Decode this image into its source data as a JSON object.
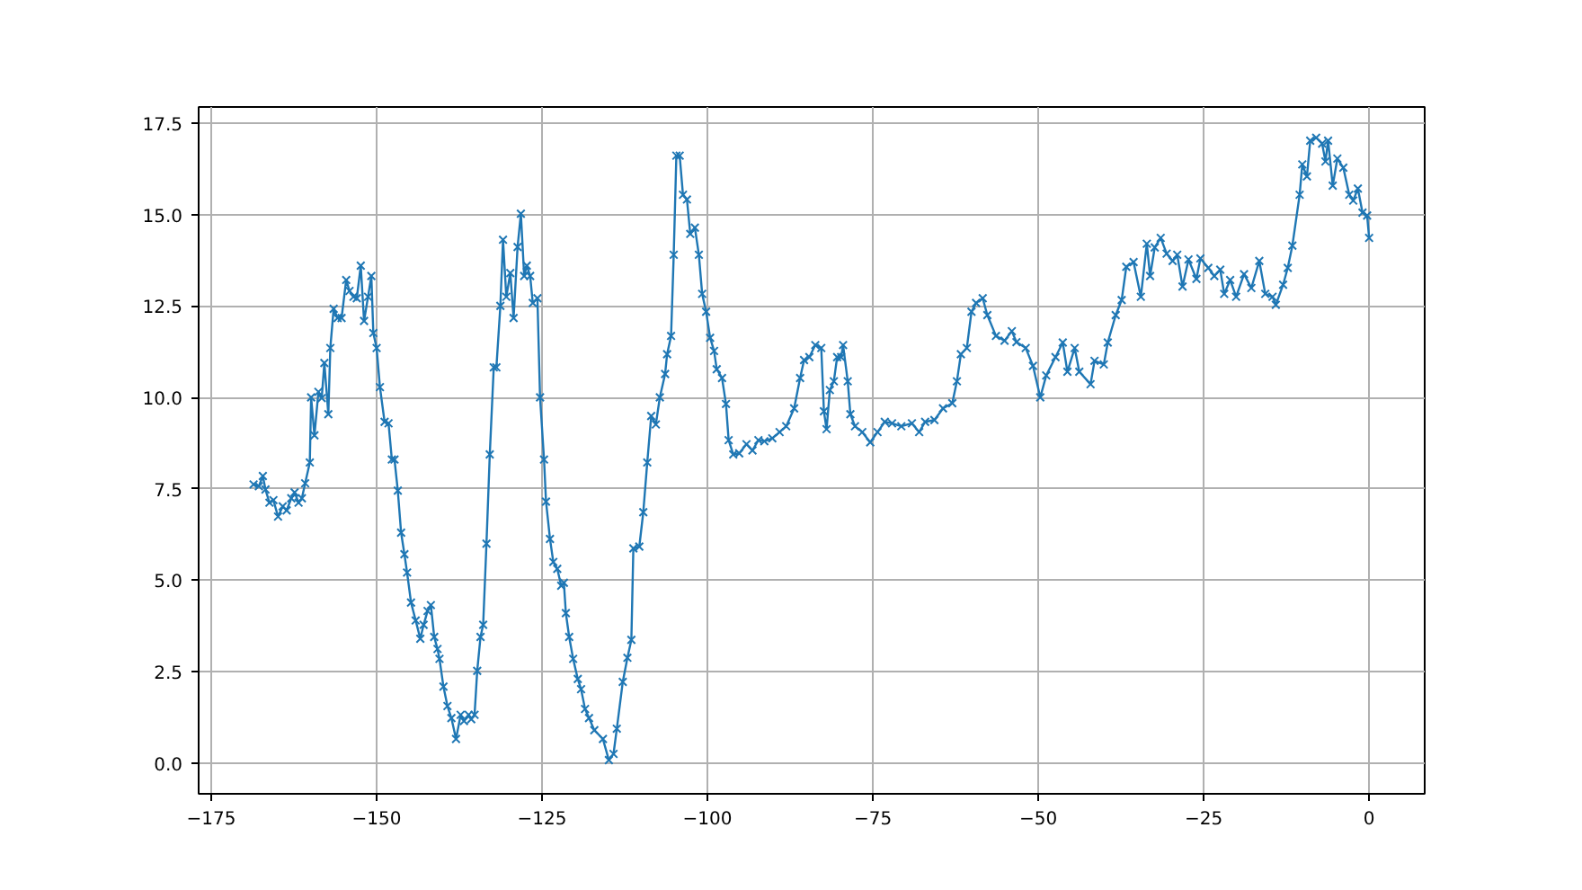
{
  "chart_data": {
    "type": "line",
    "marker": "cross",
    "grid": true,
    "xlim": [
      -176.9,
      8.4
    ],
    "ylim": [
      -0.84,
      17.94
    ],
    "xticks": [
      {
        "value": -175,
        "label": "−175"
      },
      {
        "value": -150,
        "label": "−150"
      },
      {
        "value": -125,
        "label": "−125"
      },
      {
        "value": -100,
        "label": "−100"
      },
      {
        "value": -75,
        "label": "−75"
      },
      {
        "value": -50,
        "label": "−50"
      },
      {
        "value": -25,
        "label": "−25"
      },
      {
        "value": 0,
        "label": "0"
      }
    ],
    "yticks": [
      {
        "value": 0,
        "label": "0.0"
      },
      {
        "value": 2.5,
        "label": "2.5"
      },
      {
        "value": 5,
        "label": "5.0"
      },
      {
        "value": 7.5,
        "label": "7.5"
      },
      {
        "value": 10,
        "label": "10.0"
      },
      {
        "value": 12.5,
        "label": "12.5"
      },
      {
        "value": 15,
        "label": "15.0"
      },
      {
        "value": 17.5,
        "label": "17.5"
      }
    ],
    "series": [
      {
        "color": "#1f77b4",
        "x": [
          -168.6,
          -167.8,
          -167.2,
          -166.8,
          -166.2,
          -165.6,
          -164.9,
          -164.2,
          -163.6,
          -162.9,
          -162.4,
          -161.8,
          -161.3,
          -160.8,
          -160.1,
          -159.9,
          -159.4,
          -158.8,
          -158.3,
          -157.9,
          -157.3,
          -157.0,
          -156.5,
          -155.9,
          -155.3,
          -154.6,
          -154.1,
          -153.5,
          -153.0,
          -152.4,
          -151.9,
          -151.3,
          -150.8,
          -150.5,
          -150.0,
          -149.5,
          -148.8,
          -148.2,
          -147.7,
          -147.3,
          -146.8,
          -146.3,
          -145.8,
          -145.4,
          -144.8,
          -144.1,
          -143.4,
          -142.9,
          -142.3,
          -141.8,
          -141.3,
          -140.8,
          -140.5,
          -139.9,
          -139.3,
          -138.7,
          -138.0,
          -137.3,
          -136.8,
          -136.1,
          -135.7,
          -135.2,
          -134.8,
          -134.3,
          -133.9,
          -133.4,
          -132.9,
          -132.3,
          -131.9,
          -131.3,
          -130.9,
          -130.4,
          -129.8,
          -129.3,
          -128.7,
          -128.2,
          -127.7,
          -127.3,
          -126.8,
          -126.4,
          -125.7,
          -125.3,
          -124.7,
          -124.4,
          -123.8,
          -123.3,
          -122.7,
          -122.1,
          -121.7,
          -121.4,
          -120.9,
          -120.3,
          -119.6,
          -119.1,
          -118.5,
          -117.9,
          -117.1,
          -115.8,
          -114.9,
          -114.2,
          -113.7,
          -112.8,
          -112.1,
          -111.5,
          -111.2,
          -110.3,
          -109.7,
          -109.1,
          -108.5,
          -107.8,
          -107.2,
          -106.4,
          -106.1,
          -105.5,
          -105.1,
          -104.7,
          -104.2,
          -103.7,
          -103.1,
          -102.6,
          -101.9,
          -101.3,
          -100.8,
          -100.2,
          -99.6,
          -99.0,
          -98.6,
          -97.8,
          -97.2,
          -96.8,
          -96.1,
          -95.2,
          -94.1,
          -93.2,
          -92.3,
          -91.4,
          -90.2,
          -89.1,
          -88.1,
          -86.9,
          -86.0,
          -85.4,
          -84.6,
          -83.7,
          -82.8,
          -82.4,
          -82.0,
          -81.5,
          -80.9,
          -80.4,
          -79.8,
          -79.5,
          -78.8,
          -78.4,
          -77.7,
          -76.6,
          -75.4,
          -74.3,
          -73.2,
          -72.1,
          -70.7,
          -69.1,
          -68.0,
          -67.1,
          -65.7,
          -64.4,
          -63.0,
          -62.3,
          -61.7,
          -60.8,
          -60.1,
          -59.4,
          -58.4,
          -57.7,
          -56.4,
          -55.1,
          -54.0,
          -53.3,
          -51.9,
          -50.8,
          -49.7,
          -48.8,
          -47.4,
          -46.3,
          -45.6,
          -44.5,
          -43.8,
          -42.1,
          -41.5,
          -40.1,
          -39.5,
          -38.3,
          -37.4,
          -36.7,
          -35.6,
          -34.5,
          -33.6,
          -33.1,
          -32.4,
          -31.5,
          -30.6,
          -29.7,
          -29.0,
          -28.2,
          -27.3,
          -26.1,
          -25.5,
          -24.3,
          -23.4,
          -22.5,
          -21.9,
          -21.0,
          -20.1,
          -18.9,
          -17.8,
          -16.6,
          -15.7,
          -14.6,
          -14.1,
          -13.0,
          -12.3,
          -11.6,
          -10.5,
          -10.1,
          -9.4,
          -8.9,
          -8.0,
          -7.1,
          -6.6,
          -6.2,
          -5.5,
          -4.8,
          -3.9,
          -3.0,
          -2.4,
          -1.7,
          -1.0,
          -0.3,
          0
        ],
        "values": [
          7.62,
          7.57,
          7.85,
          7.48,
          7.12,
          7.19,
          6.74,
          7.02,
          6.91,
          7.24,
          7.4,
          7.12,
          7.24,
          7.65,
          8.22,
          10.0,
          8.96,
          10.15,
          9.98,
          10.94,
          9.54,
          11.35,
          12.42,
          12.17,
          12.17,
          13.21,
          12.91,
          12.75,
          12.71,
          13.6,
          12.09,
          12.75,
          13.32,
          11.76,
          11.35,
          10.28,
          9.33,
          9.29,
          8.3,
          8.3,
          7.45,
          6.3,
          5.71,
          5.21,
          4.39,
          3.9,
          3.4,
          3.78,
          4.16,
          4.32,
          3.45,
          3.12,
          2.85,
          2.09,
          1.56,
          1.23,
          0.66,
          1.32,
          1.15,
          1.32,
          1.2,
          1.32,
          2.52,
          3.45,
          3.78,
          6.0,
          8.44,
          10.82,
          10.82,
          12.5,
          14.31,
          12.75,
          13.4,
          12.17,
          14.11,
          15.02,
          13.32,
          13.6,
          13.32,
          12.58,
          12.71,
          10.0,
          8.3,
          7.15,
          6.13,
          5.5,
          5.31,
          4.85,
          4.93,
          4.1,
          3.45,
          2.85,
          2.3,
          2.02,
          1.48,
          1.23,
          0.9,
          0.66,
          0.08,
          0.25,
          0.94,
          2.22,
          2.88,
          3.37,
          5.87,
          5.92,
          6.86,
          8.22,
          9.49,
          9.26,
          10.0,
          10.64,
          11.18,
          11.68,
          13.9,
          16.61,
          16.61,
          15.54,
          15.41,
          14.47,
          14.64,
          13.9,
          12.83,
          12.34,
          11.63,
          11.27,
          10.77,
          10.53,
          9.82,
          8.83,
          8.44,
          8.47,
          8.72,
          8.55,
          8.83,
          8.8,
          8.88,
          9.05,
          9.21,
          9.7,
          10.53,
          11.02,
          11.1,
          11.43,
          11.35,
          9.62,
          9.13,
          10.2,
          10.44,
          11.1,
          11.1,
          11.43,
          10.44,
          9.54,
          9.21,
          9.05,
          8.77,
          9.05,
          9.33,
          9.29,
          9.21,
          9.29,
          9.05,
          9.33,
          9.38,
          9.7,
          9.84,
          10.44,
          11.18,
          11.35,
          12.34,
          12.58,
          12.71,
          12.25,
          11.68,
          11.55,
          11.81,
          11.51,
          11.35,
          10.86,
          10.0,
          10.6,
          11.1,
          11.5,
          10.7,
          11.35,
          10.7,
          10.36,
          11.0,
          10.9,
          11.5,
          12.25,
          12.66,
          13.57,
          13.7,
          12.75,
          14.2,
          13.32,
          14.1,
          14.36,
          13.93,
          13.73,
          13.9,
          13.03,
          13.77,
          13.24,
          13.8,
          13.54,
          13.32,
          13.49,
          12.83,
          13.21,
          12.75,
          13.37,
          12.99,
          13.73,
          12.83,
          12.75,
          12.53,
          13.08,
          13.54,
          14.15,
          15.54,
          16.37,
          16.04,
          17.02,
          17.1,
          16.94,
          16.45,
          17.02,
          15.79,
          16.53,
          16.28,
          15.54,
          15.38,
          15.71,
          15.05,
          14.97,
          14.36
        ]
      }
    ]
  }
}
